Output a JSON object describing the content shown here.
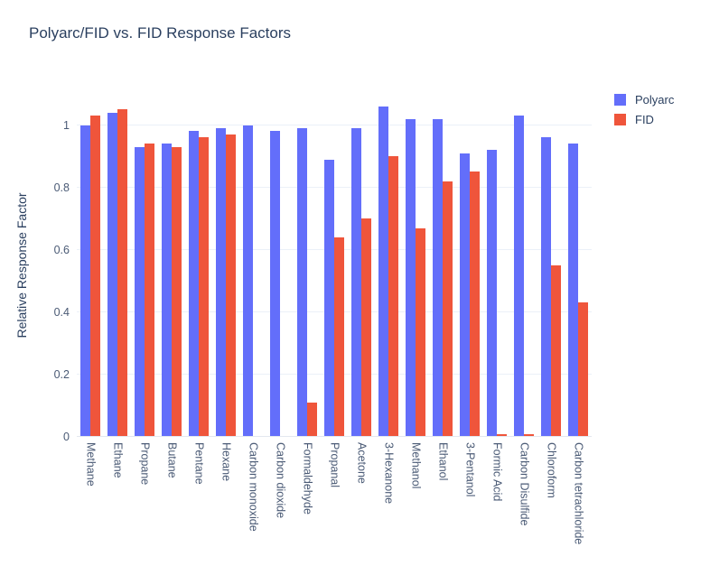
{
  "chart_data": {
    "type": "bar",
    "title": "Polyarc/FID vs. FID Response Factors",
    "xlabel": "",
    "ylabel": "Relative Response Factor",
    "ylim": [
      0,
      1.1
    ],
    "yticks": [
      0,
      0.2,
      0.4,
      0.6,
      0.8,
      1
    ],
    "grid": true,
    "legend_position": "top-right",
    "categories": [
      "Methane",
      "Ethane",
      "Propane",
      "Butane",
      "Pentane",
      "Hexane",
      "Carbon monoxide",
      "Carbon dioxide",
      "Formaldehyde",
      "Propanal",
      "Acetone",
      "3-Hexanone",
      "Methanol",
      "Ethanol",
      "3-Pentanol",
      "Formic Acid",
      "Carbon Disulfide",
      "Chloroform",
      "Carbon tetrachloride"
    ],
    "series": [
      {
        "name": "Polyarc",
        "color": "#636efa",
        "values": [
          1.0,
          1.04,
          0.93,
          0.94,
          0.98,
          0.99,
          1.0,
          0.98,
          0.99,
          0.89,
          0.99,
          1.06,
          1.02,
          1.02,
          0.91,
          0.92,
          1.03,
          0.96,
          0.94
        ]
      },
      {
        "name": "FID",
        "color": "#ef553b",
        "values": [
          1.03,
          1.05,
          0.94,
          0.93,
          0.96,
          0.97,
          0,
          0,
          0.11,
          0.64,
          0.7,
          0.9,
          0.67,
          0.82,
          0.85,
          0.01,
          0.01,
          0.55,
          0.43
        ]
      }
    ]
  },
  "colors": {
    "title_text": "#2a3f5f",
    "tick_text": "#4a5a75",
    "gridline": "#ebf0f8",
    "background": "#ffffff",
    "polyarc": "#636efa",
    "fid": "#ef553b"
  }
}
